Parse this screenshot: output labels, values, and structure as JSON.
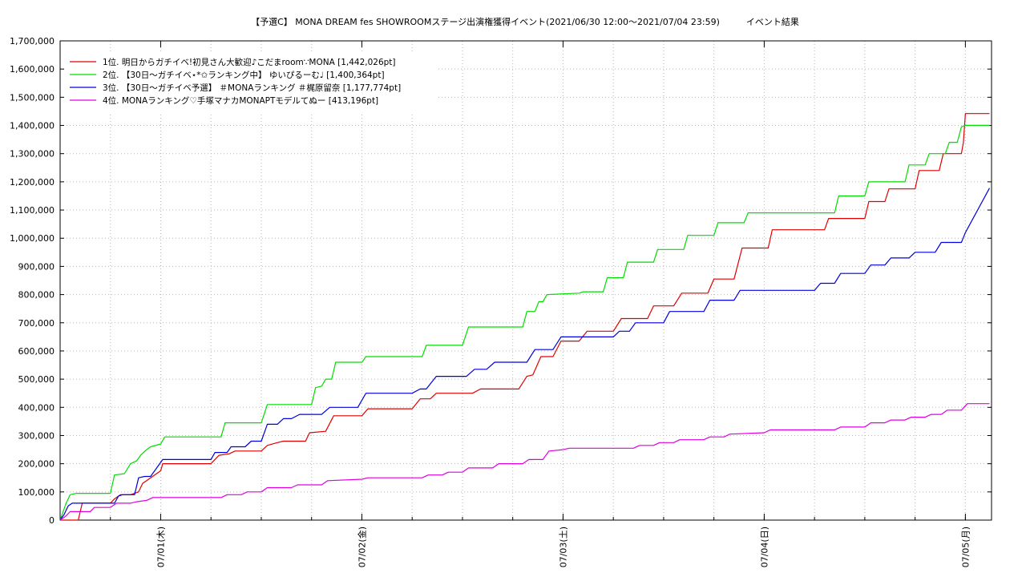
{
  "chart_data": {
    "type": "line",
    "title": "【予選C】 MONA DREAM fes SHOWROOMステージ出演権獲得イベント(2021/06/30 12:00～2021/07/04 23:59)　　　イベント結果",
    "xlabel": "",
    "ylabel": "",
    "ylim": [
      0,
      1700000
    ],
    "xlim": [
      -0.5,
      4.13
    ],
    "x_unit": "days since 2021/07/01 00:00",
    "grid": true,
    "legend_position": "top-left",
    "y_ticks": [
      0,
      100000,
      200000,
      300000,
      400000,
      500000,
      600000,
      700000,
      800000,
      900000,
      1000000,
      1100000,
      1200000,
      1300000,
      1400000,
      1500000,
      1600000,
      1700000
    ],
    "y_tick_labels": [
      "0",
      "100,000",
      "200,000",
      "300,000",
      "400,000",
      "500,000",
      "600,000",
      "700,000",
      "800,000",
      "900,000",
      "1,000,000",
      "1,100,000",
      "1,200,000",
      "1,300,000",
      "1,400,000",
      "1,500,000",
      "1,600,000",
      "1,700,000"
    ],
    "x_ticks": [
      0,
      1,
      2,
      3,
      4
    ],
    "x_tick_labels": [
      "07/01(木)",
      "07/02(金)",
      "07/03(土)",
      "07/04(日)",
      "07/05(月)"
    ],
    "series": [
      {
        "name": "1位. 明日からガチイベ!初見さん大歓迎♪こだまroom∵MONA [1,442,026pt]",
        "color": "#e00000",
        "x": [
          -0.5,
          -0.41,
          -0.39,
          -0.36,
          -0.25,
          -0.23,
          -0.2,
          -0.18,
          -0.15,
          -0.11,
          -0.09,
          -0.05,
          0,
          0.01,
          0.25,
          0.29,
          0.34,
          0.37,
          0.5,
          0.53,
          0.58,
          0.61,
          0.72,
          0.74,
          0.82,
          0.86,
          1.0,
          1.03,
          1.25,
          1.29,
          1.34,
          1.37,
          1.55,
          1.59,
          1.78,
          1.82,
          1.85,
          1.89,
          1.95,
          1.99,
          2.08,
          2.12,
          2.25,
          2.29,
          2.42,
          2.45,
          2.55,
          2.59,
          2.72,
          2.75,
          2.85,
          2.89,
          3.0,
          3.02,
          3.04,
          3.3,
          3.32,
          3.5,
          3.52,
          3.6,
          3.62,
          3.75,
          3.77,
          3.87,
          3.89,
          3.98,
          3.99,
          4.0,
          4.12
        ],
        "values": [
          0,
          0,
          60000,
          60000,
          60000,
          75000,
          90000,
          90000,
          90000,
          100000,
          130000,
          150000,
          175000,
          200000,
          200000,
          230000,
          235000,
          245000,
          245000,
          265000,
          275000,
          280000,
          280000,
          310000,
          315000,
          370000,
          370000,
          395000,
          395000,
          430000,
          430000,
          450000,
          450000,
          465000,
          465000,
          510000,
          515000,
          580000,
          580000,
          635000,
          635000,
          670000,
          670000,
          715000,
          715000,
          760000,
          760000,
          805000,
          805000,
          855000,
          855000,
          965000,
          965000,
          965000,
          1030000,
          1030000,
          1070000,
          1070000,
          1130000,
          1130000,
          1175000,
          1175000,
          1240000,
          1240000,
          1300000,
          1300000,
          1340000,
          1442026,
          1442026
        ]
      },
      {
        "name": "2位. 【30日～ガチイベ⋆*✩ランキング中】 ゆいぴるーむ♩ [1,400,364pt]",
        "color": "#00dd00",
        "x": [
          -0.5,
          -0.47,
          -0.45,
          -0.42,
          -0.25,
          -0.23,
          -0.18,
          -0.15,
          -0.12,
          -0.1,
          -0.07,
          -0.05,
          0.0,
          0.02,
          0.3,
          0.32,
          0.5,
          0.53,
          0.75,
          0.77,
          0.8,
          0.82,
          0.85,
          0.87,
          1.0,
          1.02,
          1.3,
          1.32,
          1.5,
          1.53,
          1.8,
          1.82,
          1.86,
          1.88,
          1.9,
          1.92,
          2.08,
          2.1,
          2.2,
          2.22,
          2.3,
          2.32,
          2.45,
          2.47,
          2.6,
          2.62,
          2.75,
          2.77,
          2.9,
          2.92,
          3.0,
          3.02,
          3.35,
          3.37,
          3.5,
          3.52,
          3.7,
          3.72,
          3.8,
          3.82,
          3.9,
          3.92,
          3.96,
          3.98,
          4.0,
          4.12
        ],
        "values": [
          0,
          60000,
          90000,
          95000,
          95000,
          160000,
          165000,
          200000,
          210000,
          230000,
          250000,
          260000,
          270000,
          295000,
          295000,
          345000,
          345000,
          410000,
          410000,
          470000,
          475000,
          500000,
          500000,
          560000,
          560000,
          580000,
          580000,
          620000,
          620000,
          685000,
          685000,
          740000,
          740000,
          775000,
          775000,
          800000,
          805000,
          810000,
          810000,
          860000,
          860000,
          915000,
          915000,
          960000,
          960000,
          1010000,
          1010000,
          1055000,
          1055000,
          1090000,
          1090000,
          1090000,
          1090000,
          1150000,
          1150000,
          1200000,
          1200000,
          1260000,
          1260000,
          1300000,
          1300000,
          1340000,
          1340000,
          1395000,
          1400364,
          1400364
        ]
      },
      {
        "name": "3位. 【30日～ガチイベ予選】 ＃MONAランキング ＃梶原留奈 [1,177,774pt]",
        "color": "#0000e0",
        "x": [
          -0.5,
          -0.48,
          -0.46,
          -0.44,
          -0.23,
          -0.21,
          -0.19,
          -0.17,
          -0.13,
          -0.11,
          -0.08,
          -0.05,
          -0.03,
          0.01,
          0.25,
          0.27,
          0.33,
          0.35,
          0.42,
          0.45,
          0.5,
          0.53,
          0.58,
          0.61,
          0.65,
          0.69,
          0.8,
          0.84,
          0.98,
          1.02,
          1.25,
          1.29,
          1.32,
          1.37,
          1.52,
          1.56,
          1.62,
          1.66,
          1.82,
          1.86,
          1.95,
          1.99,
          2.25,
          2.28,
          2.33,
          2.36,
          2.5,
          2.53,
          2.7,
          2.73,
          2.85,
          2.88,
          3.0,
          3.03,
          3.25,
          3.28,
          3.35,
          3.38,
          3.5,
          3.53,
          3.6,
          3.63,
          3.72,
          3.75,
          3.85,
          3.88,
          3.98,
          4.0,
          4.12
        ],
        "values": [
          0,
          20000,
          50000,
          60000,
          60000,
          85000,
          90000,
          90000,
          90000,
          150000,
          155000,
          155000,
          175000,
          215000,
          215000,
          240000,
          240000,
          260000,
          260000,
          280000,
          280000,
          340000,
          340000,
          360000,
          360000,
          375000,
          375000,
          400000,
          400000,
          450000,
          450000,
          465000,
          465000,
          510000,
          510000,
          535000,
          535000,
          560000,
          560000,
          605000,
          605000,
          650000,
          650000,
          670000,
          670000,
          700000,
          700000,
          740000,
          740000,
          780000,
          780000,
          815000,
          815000,
          815000,
          815000,
          840000,
          840000,
          875000,
          875000,
          905000,
          905000,
          930000,
          930000,
          950000,
          950000,
          985000,
          985000,
          1020000,
          1177774
        ]
      },
      {
        "name": "4位. MONAランキング♡手塚マナカMONAPTモデルてぬー [413,196pt]",
        "color": "#e000e0",
        "x": [
          -0.5,
          -0.47,
          -0.45,
          -0.35,
          -0.33,
          -0.25,
          -0.22,
          -0.15,
          -0.12,
          -0.07,
          -0.04,
          0.3,
          0.33,
          0.4,
          0.43,
          0.5,
          0.53,
          0.65,
          0.68,
          0.8,
          0.83,
          1.0,
          1.03,
          1.3,
          1.33,
          1.4,
          1.43,
          1.5,
          1.53,
          1.65,
          1.68,
          1.8,
          1.83,
          1.9,
          1.93,
          2.0,
          2.03,
          2.35,
          2.38,
          2.45,
          2.48,
          2.55,
          2.58,
          2.7,
          2.73,
          2.8,
          2.83,
          3.0,
          3.03,
          3.35,
          3.38,
          3.5,
          3.53,
          3.6,
          3.63,
          3.7,
          3.73,
          3.8,
          3.83,
          3.88,
          3.91,
          3.98,
          4.01,
          4.12
        ],
        "values": [
          0,
          15000,
          30000,
          30000,
          45000,
          45000,
          60000,
          60000,
          65000,
          70000,
          80000,
          80000,
          90000,
          90000,
          100000,
          100000,
          115000,
          115000,
          125000,
          125000,
          140000,
          145000,
          150000,
          150000,
          160000,
          160000,
          170000,
          170000,
          185000,
          185000,
          200000,
          200000,
          215000,
          215000,
          245000,
          250000,
          255000,
          255000,
          265000,
          265000,
          275000,
          275000,
          285000,
          285000,
          295000,
          295000,
          305000,
          310000,
          320000,
          320000,
          330000,
          330000,
          345000,
          345000,
          355000,
          355000,
          365000,
          365000,
          375000,
          375000,
          390000,
          390000,
          413196,
          413196
        ]
      }
    ]
  }
}
